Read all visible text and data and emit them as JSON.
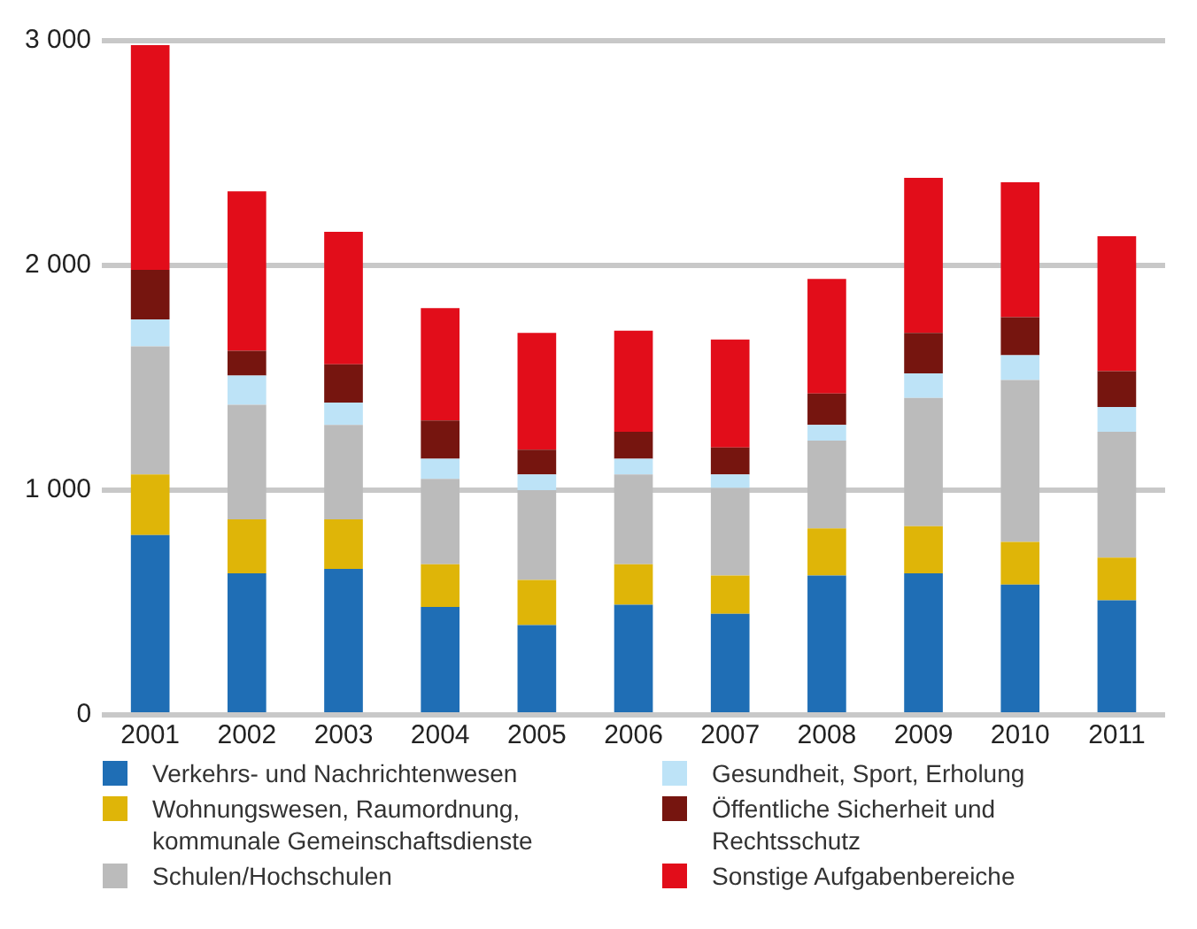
{
  "chart_data": {
    "type": "bar",
    "stacked": true,
    "categories": [
      "2001",
      "2002",
      "2003",
      "2004",
      "2005",
      "2006",
      "2007",
      "2008",
      "2009",
      "2010",
      "2011"
    ],
    "series": [
      {
        "name": "Verkehrs- und Nachrichtenwesen",
        "color": "#1f6eb5",
        "values": [
          800,
          630,
          650,
          480,
          400,
          490,
          450,
          620,
          630,
          580,
          510
        ]
      },
      {
        "name": "Wohnungswesen, Raumordnung, kommunale Gemeinschaftsdienste",
        "color": "#dfb508",
        "values": [
          270,
          240,
          220,
          190,
          200,
          180,
          170,
          210,
          210,
          190,
          190
        ]
      },
      {
        "name": "Schulen/Hochschulen",
        "color": "#bbbbbb",
        "values": [
          570,
          510,
          420,
          380,
          400,
          400,
          390,
          390,
          570,
          720,
          560
        ]
      },
      {
        "name": "Gesundheit, Sport, Erholung",
        "color": "#bde3f7",
        "values": [
          120,
          130,
          100,
          90,
          70,
          70,
          60,
          70,
          110,
          110,
          110
        ]
      },
      {
        "name": "Öffentliche Sicherheit und Rechtsschutz",
        "color": "#76150f",
        "values": [
          220,
          110,
          170,
          170,
          110,
          120,
          120,
          140,
          180,
          170,
          160
        ]
      },
      {
        "name": "Sonstige Aufgabenbereiche",
        "color": "#e20d1a",
        "values": [
          1000,
          710,
          590,
          500,
          520,
          450,
          480,
          510,
          690,
          600,
          600
        ]
      }
    ],
    "ylim": [
      0,
      3000
    ],
    "yticks": [
      0,
      {
        "value": 1000,
        "label": "1 000"
      },
      {
        "value": 2000,
        "label": "2 000"
      },
      {
        "value": 3000,
        "label": "3 000"
      }
    ],
    "grid": "y",
    "legend": "bottom"
  }
}
